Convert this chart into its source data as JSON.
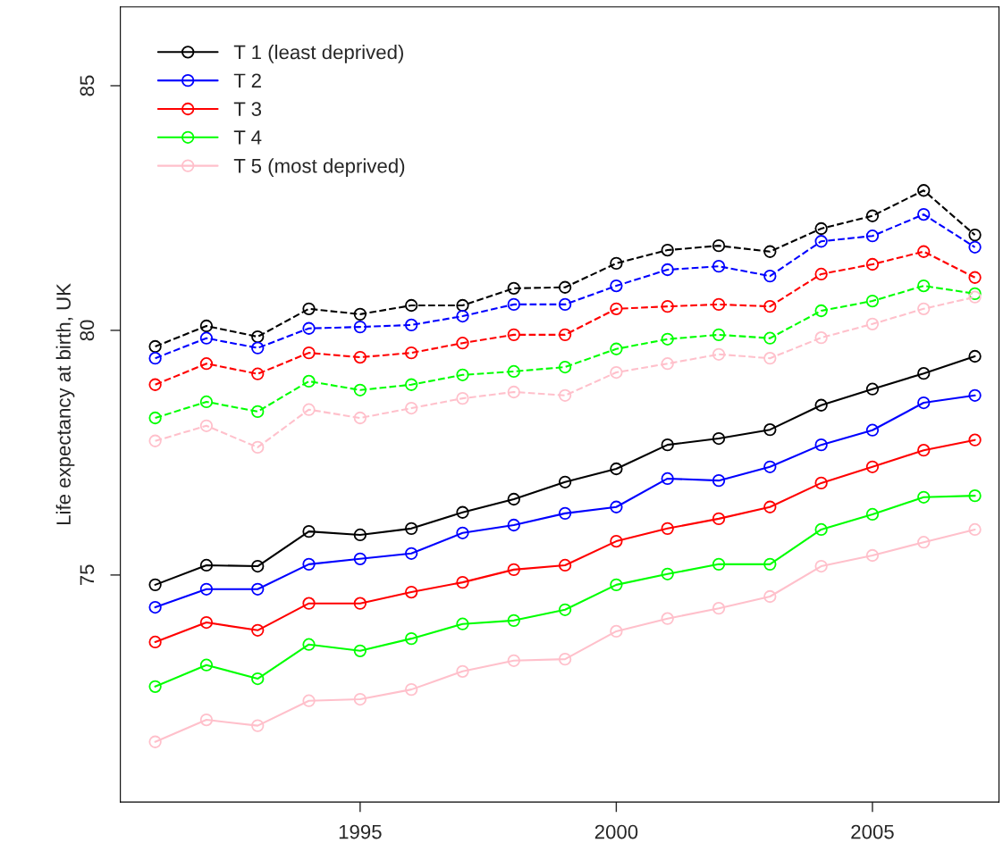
{
  "chart_data": {
    "type": "line",
    "ylabel": "Life expectancy at birth, UK",
    "x": [
      1991,
      1992,
      1993,
      1994,
      1995,
      1996,
      1997,
      1998,
      1999,
      2000,
      2001,
      2002,
      2003,
      2004,
      2005,
      2006,
      2007
    ],
    "xlim": [
      1990.32,
      2007.47
    ],
    "xticks": [
      1995,
      2000,
      2005
    ],
    "ylim": [
      70.36,
      86.61
    ],
    "yticks": [
      75,
      80,
      85
    ],
    "grid": false,
    "legend": "top left",
    "marker": "circle",
    "series": [
      {
        "name": "T 1 (least deprived)",
        "color": "#000000",
        "line_style": "solid",
        "values": [
          74.8,
          75.2,
          75.18,
          75.89,
          75.82,
          75.95,
          76.28,
          76.55,
          76.9,
          77.17,
          77.66,
          77.79,
          77.97,
          78.47,
          78.8,
          79.12,
          79.47
        ]
      },
      {
        "name": "T 2",
        "color": "#0000ff",
        "line_style": "solid",
        "values": [
          74.34,
          74.71,
          74.71,
          75.22,
          75.33,
          75.44,
          75.86,
          76.02,
          76.26,
          76.39,
          76.97,
          76.93,
          77.21,
          77.66,
          77.96,
          78.52,
          78.67
        ]
      },
      {
        "name": "T 3",
        "color": "#ff0000",
        "line_style": "solid",
        "values": [
          73.63,
          74.03,
          73.87,
          74.42,
          74.42,
          74.65,
          74.85,
          75.11,
          75.2,
          75.69,
          75.95,
          76.15,
          76.39,
          76.88,
          77.21,
          77.55,
          77.76
        ]
      },
      {
        "name": "T 4",
        "color": "#00ff00",
        "line_style": "solid",
        "values": [
          72.72,
          73.16,
          72.88,
          73.58,
          73.45,
          73.7,
          74.0,
          74.07,
          74.29,
          74.8,
          75.02,
          75.22,
          75.22,
          75.93,
          76.24,
          76.59,
          76.62
        ]
      },
      {
        "name": "T 5 (most deprived)",
        "color": "#ffc0cb",
        "line_style": "solid",
        "values": [
          71.59,
          72.04,
          71.92,
          72.43,
          72.46,
          72.66,
          73.03,
          73.25,
          73.28,
          73.85,
          74.11,
          74.32,
          74.56,
          75.18,
          75.4,
          75.67,
          75.93
        ]
      },
      {
        "color": "#000000",
        "line_style": "dashed",
        "values": [
          79.67,
          80.09,
          79.87,
          80.44,
          80.33,
          80.51,
          80.51,
          80.86,
          80.88,
          81.37,
          81.64,
          81.73,
          81.61,
          82.08,
          82.34,
          82.86,
          81.95
        ]
      },
      {
        "color": "#0000ff",
        "line_style": "dashed",
        "values": [
          79.43,
          79.84,
          79.64,
          80.04,
          80.07,
          80.11,
          80.29,
          80.53,
          80.53,
          80.91,
          81.24,
          81.31,
          81.11,
          81.82,
          81.93,
          82.37,
          81.7
        ]
      },
      {
        "color": "#ff0000",
        "line_style": "dashed",
        "values": [
          78.89,
          79.32,
          79.11,
          79.54,
          79.45,
          79.54,
          79.74,
          79.91,
          79.91,
          80.44,
          80.49,
          80.53,
          80.49,
          81.15,
          81.35,
          81.61,
          81.08
        ]
      },
      {
        "color": "#00ff00",
        "line_style": "dashed",
        "values": [
          78.21,
          78.54,
          78.34,
          78.96,
          78.78,
          78.89,
          79.09,
          79.16,
          79.25,
          79.62,
          79.82,
          79.91,
          79.84,
          80.4,
          80.6,
          80.91,
          80.75
        ]
      },
      {
        "color": "#ffc0cb",
        "line_style": "dashed",
        "values": [
          77.74,
          78.05,
          77.61,
          78.38,
          78.21,
          78.41,
          78.61,
          78.74,
          78.67,
          79.14,
          79.32,
          79.51,
          79.43,
          79.85,
          80.13,
          80.44,
          80.68
        ]
      }
    ]
  }
}
